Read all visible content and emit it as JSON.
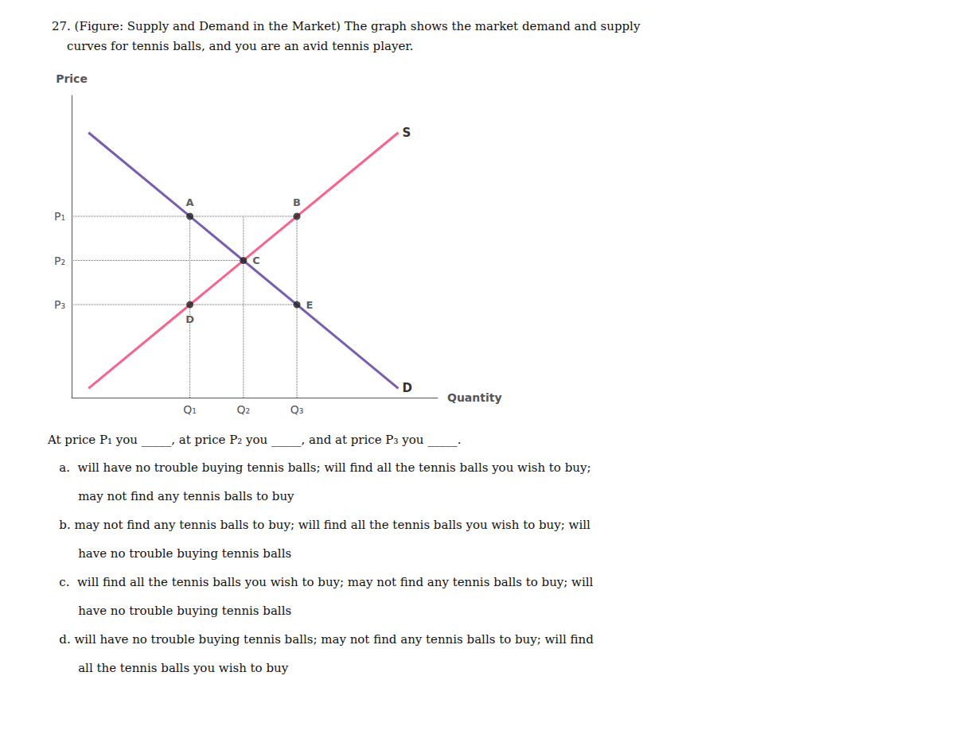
{
  "chart_data": {
    "type": "line",
    "title": "27. (Figure: Supply and Demand in the Market) The graph shows the market demand and supply",
    "subtitle": "    curves for tennis balls, and you are an avid tennis player.",
    "xlabel": "Quantity",
    "ylabel": "Price",
    "xlim": [
      0,
      6.5
    ],
    "ylim": [
      0,
      6.5
    ],
    "xticks": [
      {
        "value": 2.1,
        "label": "Q₁"
      },
      {
        "value": 3.05,
        "label": "Q₂"
      },
      {
        "value": 4.0,
        "label": "Q₃"
      }
    ],
    "yticks": [
      {
        "value": 2.0,
        "label": "P₃"
      },
      {
        "value": 2.95,
        "label": "P₂"
      },
      {
        "value": 3.9,
        "label": "P₁"
      }
    ],
    "grid": false,
    "series": [
      {
        "name": "S",
        "x": [
          0.3,
          5.8
        ],
        "values": [
          0.2,
          5.7
        ]
      },
      {
        "name": "D",
        "x": [
          0.3,
          5.8
        ],
        "values": [
          5.7,
          0.2
        ]
      }
    ],
    "points": {
      "labels": [
        "A",
        "B",
        "C",
        "D",
        "E"
      ],
      "x": [
        2.1,
        4.0,
        3.05,
        2.1,
        4.0
      ],
      "values": [
        3.9,
        3.9,
        2.95,
        2.0,
        2.0
      ],
      "marker": "circle"
    },
    "guides": {
      "line_style": "dotted",
      "lines": [
        {
          "x": [
            0,
            4.0
          ],
          "values": [
            3.9,
            3.9
          ]
        },
        {
          "x": [
            0,
            3.05
          ],
          "values": [
            2.95,
            2.95
          ]
        },
        {
          "x": [
            0,
            4.0
          ],
          "values": [
            2.0,
            2.0
          ]
        },
        {
          "x": [
            2.1,
            2.1
          ],
          "values": [
            0,
            3.9
          ]
        },
        {
          "x": [
            3.05,
            3.05
          ],
          "values": [
            0,
            3.9
          ]
        },
        {
          "x": [
            4.0,
            4.0
          ],
          "values": [
            0,
            3.9
          ]
        }
      ]
    },
    "question": "At price P₁ you _____, at price P₂ you _____, and at price P₃ you _____.",
    "answers": [
      "   a.  will have no trouble buying tennis balls; will find all the tennis balls you wish to buy;",
      "        may not find any tennis balls to buy",
      "   b. may not find any tennis balls to buy; will find all the tennis balls you wish to buy; will",
      "        have no trouble buying tennis balls",
      "   c.  will find all the tennis balls you wish to buy; may not find any tennis balls to buy; will",
      "        have no trouble buying tennis balls",
      "   d. will have no trouble buying tennis balls; may not find any tennis balls to buy; will find",
      "        all the tennis balls you wish to buy"
    ]
  }
}
